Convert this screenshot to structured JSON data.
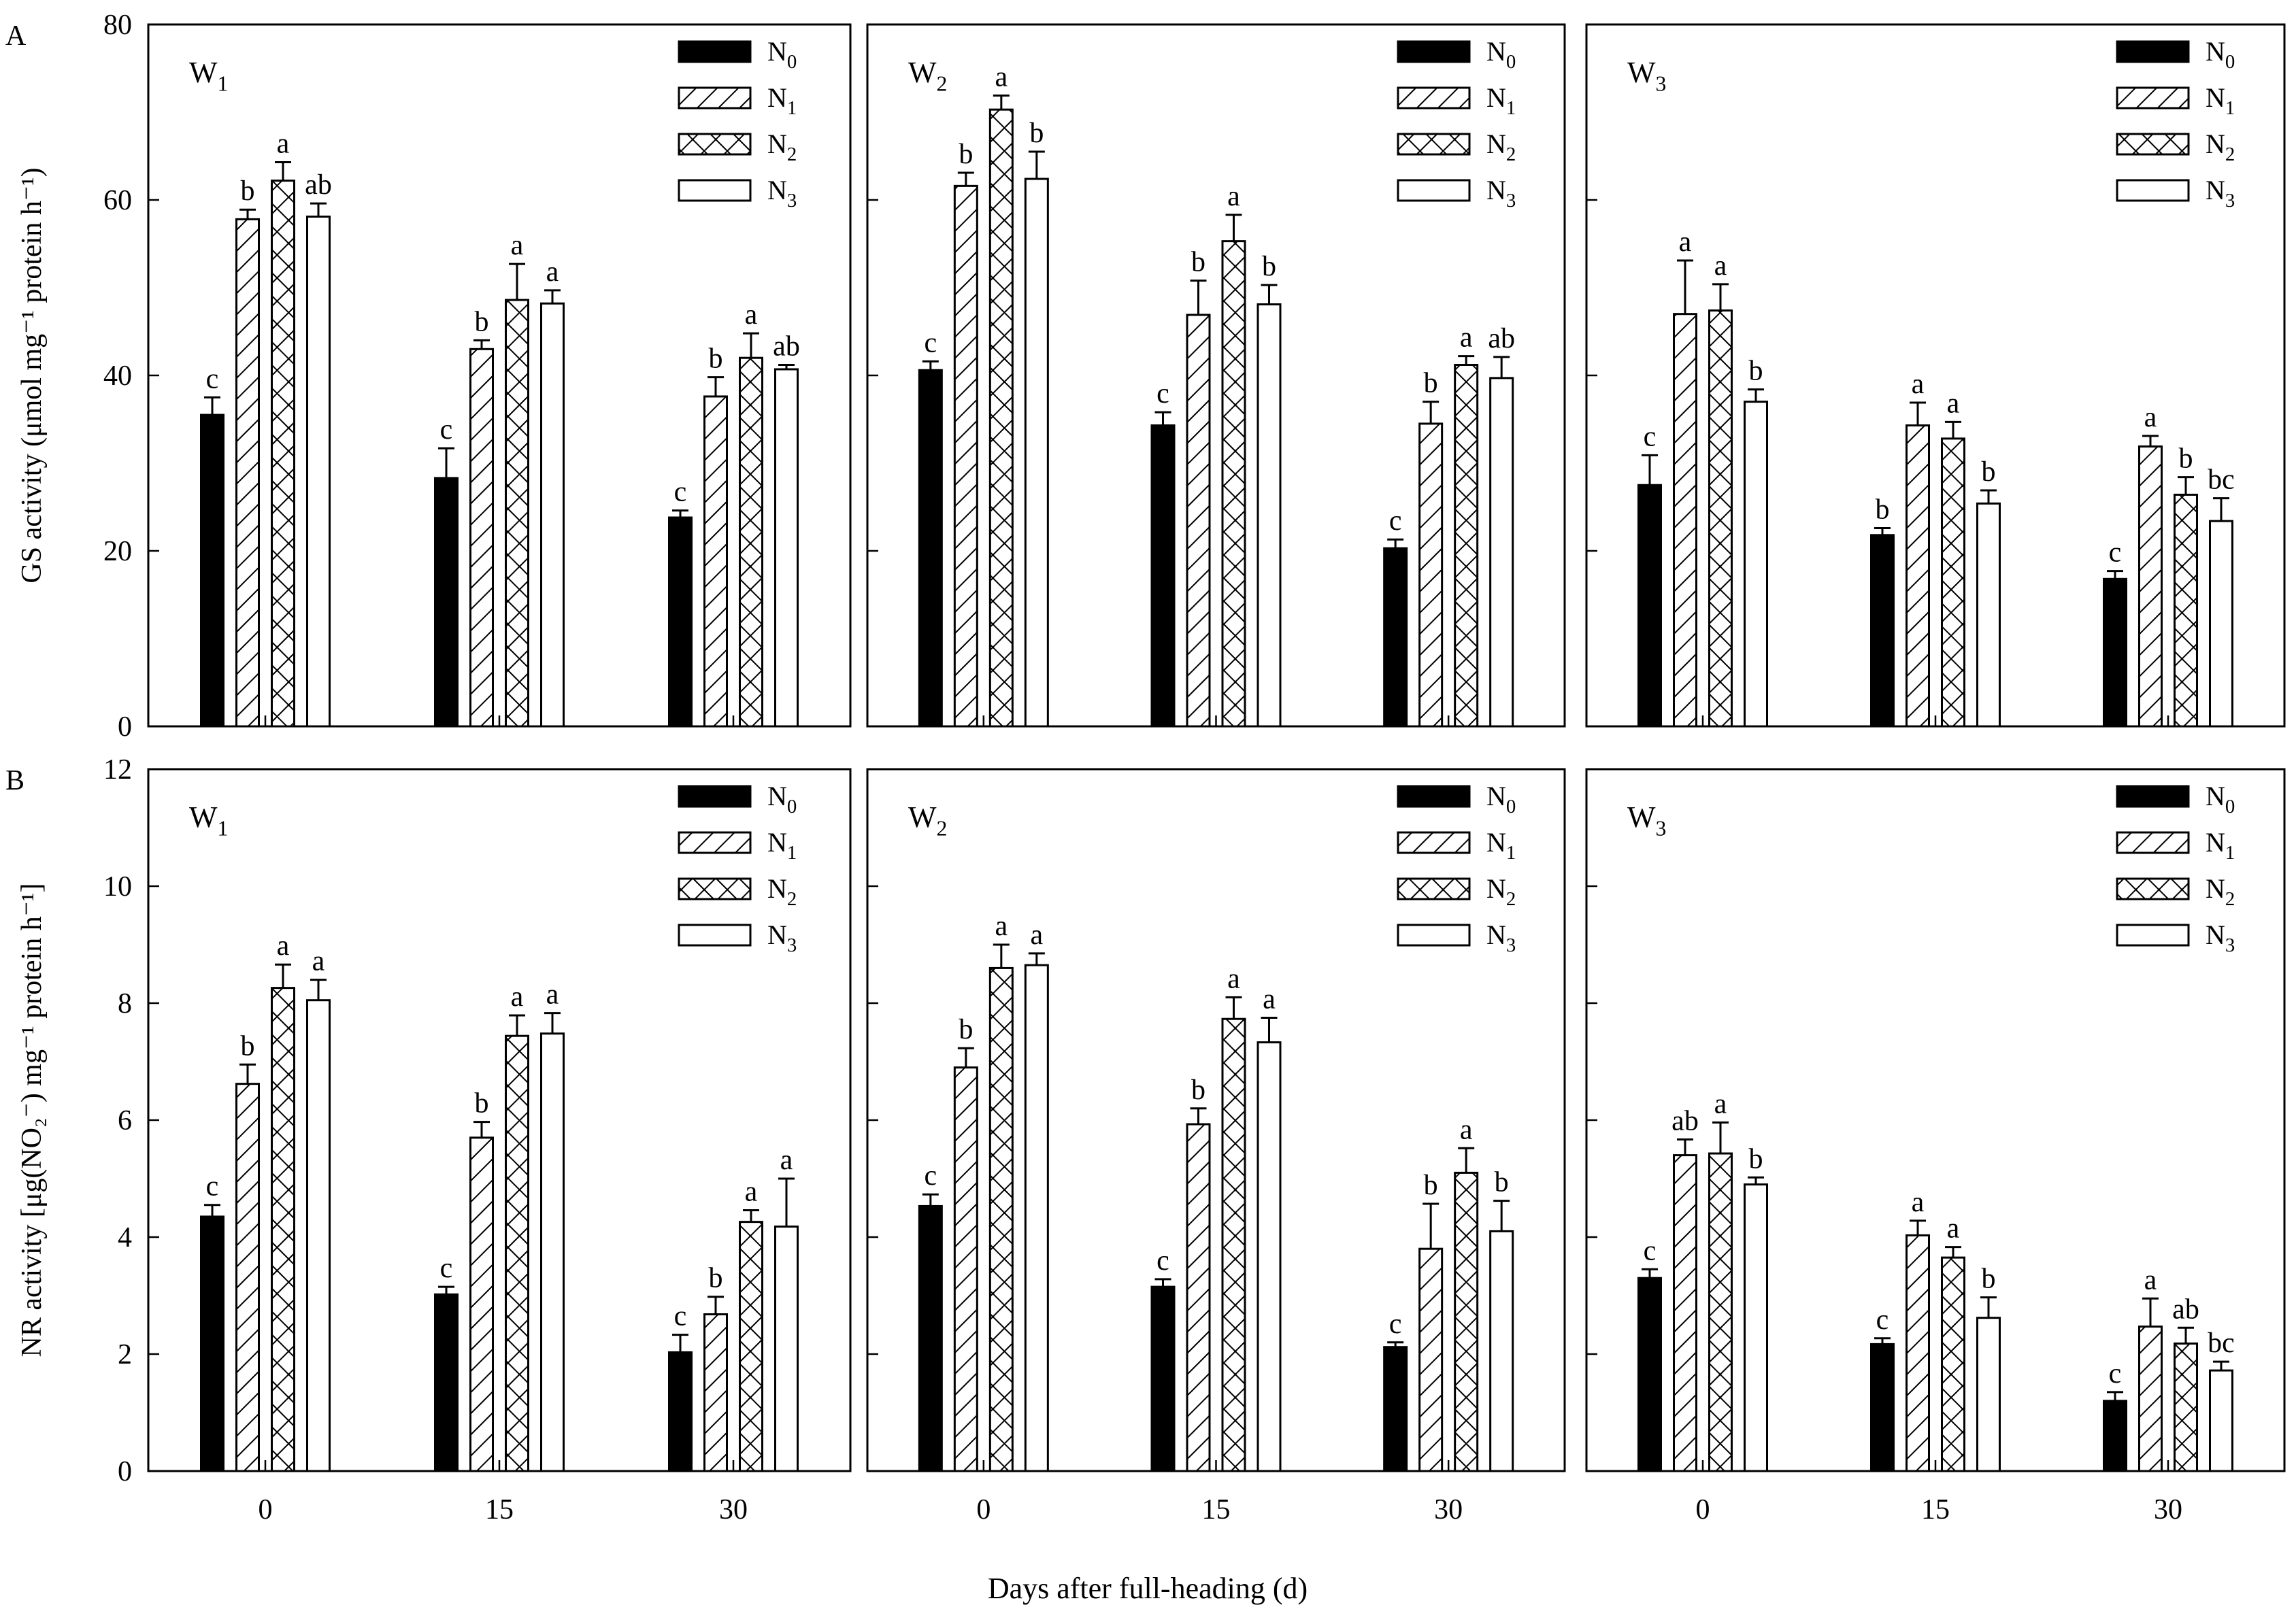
{
  "figure": {
    "xlabel": "Days after full-heading (d)",
    "row_labels": [
      "A",
      "B"
    ],
    "legend": [
      "N0",
      "N1",
      "N2",
      "N3"
    ],
    "panels": [
      "W1",
      "W2",
      "W3"
    ]
  },
  "chart_data": [
    {
      "type": "bar",
      "row": "A",
      "ylabel": "GS activity (μmol mg⁻¹ protein h⁻¹)",
      "ylim": [
        0,
        80
      ],
      "yticks": [
        0,
        20,
        40,
        60,
        80
      ],
      "categories": [
        "0",
        "15",
        "30"
      ],
      "panels": [
        {
          "label": "W1",
          "series": [
            {
              "name": "N0",
              "values": [
                35.5,
                28.3,
                23.8
              ],
              "errors": [
                2.0,
                3.4,
                0.8
              ],
              "letters": [
                "c",
                "c",
                "c"
              ]
            },
            {
              "name": "N1",
              "values": [
                57.8,
                43.0,
                37.6
              ],
              "errors": [
                1.1,
                1.0,
                2.2
              ],
              "letters": [
                "b",
                "b",
                "b"
              ]
            },
            {
              "name": "N2",
              "values": [
                62.2,
                48.6,
                42.0
              ],
              "errors": [
                2.1,
                4.1,
                2.8
              ],
              "letters": [
                "a",
                "a",
                "a"
              ]
            },
            {
              "name": "N3",
              "values": [
                58.1,
                48.2,
                40.7
              ],
              "errors": [
                1.5,
                1.5,
                0.5
              ],
              "letters": [
                "ab",
                "a",
                "ab"
              ]
            }
          ]
        },
        {
          "label": "W2",
          "series": [
            {
              "name": "N0",
              "values": [
                40.6,
                34.3,
                20.3
              ],
              "errors": [
                1.0,
                1.5,
                1.0
              ],
              "letters": [
                "c",
                "c",
                "c"
              ]
            },
            {
              "name": "N1",
              "values": [
                61.6,
                46.9,
                34.5
              ],
              "errors": [
                1.5,
                3.9,
                2.5
              ],
              "letters": [
                "b",
                "b",
                "b"
              ]
            },
            {
              "name": "N2",
              "values": [
                70.3,
                55.3,
                41.2
              ],
              "errors": [
                1.6,
                3.0,
                1.0
              ],
              "letters": [
                "a",
                "a",
                "a"
              ]
            },
            {
              "name": "N3",
              "values": [
                62.4,
                48.1,
                39.7
              ],
              "errors": [
                3.1,
                2.2,
                2.4
              ],
              "letters": [
                "b",
                "b",
                "ab"
              ]
            }
          ]
        },
        {
          "label": "W3",
          "series": [
            {
              "name": "N0",
              "values": [
                27.5,
                21.8,
                16.8
              ],
              "errors": [
                3.4,
                0.8,
                0.9
              ],
              "letters": [
                "c",
                "b",
                "c"
              ]
            },
            {
              "name": "N1",
              "values": [
                47.0,
                34.3,
                31.9
              ],
              "errors": [
                6.1,
                2.6,
                1.2
              ],
              "letters": [
                "a",
                "a",
                "a"
              ]
            },
            {
              "name": "N2",
              "values": [
                47.4,
                32.8,
                26.4
              ],
              "errors": [
                3.0,
                1.9,
                2.0
              ],
              "letters": [
                "a",
                "a",
                "b"
              ]
            },
            {
              "name": "N3",
              "values": [
                37.0,
                25.4,
                23.4
              ],
              "errors": [
                1.4,
                1.5,
                2.6
              ],
              "letters": [
                "b",
                "b",
                "bc"
              ]
            }
          ]
        }
      ]
    },
    {
      "type": "bar",
      "row": "B",
      "ylabel": "NR activity [μg(NO₂⁻) mg⁻¹ protein h⁻¹]",
      "ylim": [
        0,
        12
      ],
      "yticks": [
        0,
        2,
        4,
        6,
        8,
        10,
        12
      ],
      "categories": [
        "0",
        "15",
        "30"
      ],
      "panels": [
        {
          "label": "W1",
          "series": [
            {
              "name": "N0",
              "values": [
                4.35,
                3.02,
                2.03
              ],
              "errors": [
                0.2,
                0.13,
                0.3
              ],
              "letters": [
                "c",
                "c",
                "c"
              ]
            },
            {
              "name": "N1",
              "values": [
                6.62,
                5.7,
                2.68
              ],
              "errors": [
                0.33,
                0.27,
                0.3
              ],
              "letters": [
                "b",
                "b",
                "b"
              ]
            },
            {
              "name": "N2",
              "values": [
                8.26,
                7.44,
                4.26
              ],
              "errors": [
                0.4,
                0.35,
                0.2
              ],
              "letters": [
                "a",
                "a",
                "a"
              ]
            },
            {
              "name": "N3",
              "values": [
                8.05,
                7.48,
                4.18
              ],
              "errors": [
                0.35,
                0.35,
                0.82
              ],
              "letters": [
                "a",
                "a",
                "a"
              ]
            }
          ]
        },
        {
          "label": "W2",
          "series": [
            {
              "name": "N0",
              "values": [
                4.53,
                3.15,
                2.12
              ],
              "errors": [
                0.2,
                0.13,
                0.08
              ],
              "letters": [
                "c",
                "c",
                "c"
              ]
            },
            {
              "name": "N1",
              "values": [
                6.9,
                5.93,
                3.8
              ],
              "errors": [
                0.33,
                0.27,
                0.77
              ],
              "letters": [
                "b",
                "b",
                "b"
              ]
            },
            {
              "name": "N2",
              "values": [
                8.6,
                7.73,
                5.1
              ],
              "errors": [
                0.4,
                0.37,
                0.42
              ],
              "letters": [
                "a",
                "a",
                "a"
              ]
            },
            {
              "name": "N3",
              "values": [
                8.65,
                7.33,
                4.1
              ],
              "errors": [
                0.2,
                0.42,
                0.52
              ],
              "letters": [
                "a",
                "a",
                "b"
              ]
            }
          ]
        },
        {
          "label": "W3",
          "series": [
            {
              "name": "N0",
              "values": [
                3.3,
                2.17,
                1.2
              ],
              "errors": [
                0.15,
                0.1,
                0.15
              ],
              "letters": [
                "c",
                "c",
                "c"
              ]
            },
            {
              "name": "N1",
              "values": [
                5.4,
                4.03,
                2.47
              ],
              "errors": [
                0.27,
                0.25,
                0.48
              ],
              "letters": [
                "ab",
                "a",
                "a"
              ]
            },
            {
              "name": "N2",
              "values": [
                5.43,
                3.65,
                2.18
              ],
              "errors": [
                0.53,
                0.18,
                0.27
              ],
              "letters": [
                "a",
                "a",
                "ab"
              ]
            },
            {
              "name": "N3",
              "values": [
                4.9,
                2.62,
                1.72
              ],
              "errors": [
                0.12,
                0.35,
                0.15
              ],
              "letters": [
                "b",
                "b",
                "bc"
              ]
            }
          ]
        }
      ]
    }
  ]
}
